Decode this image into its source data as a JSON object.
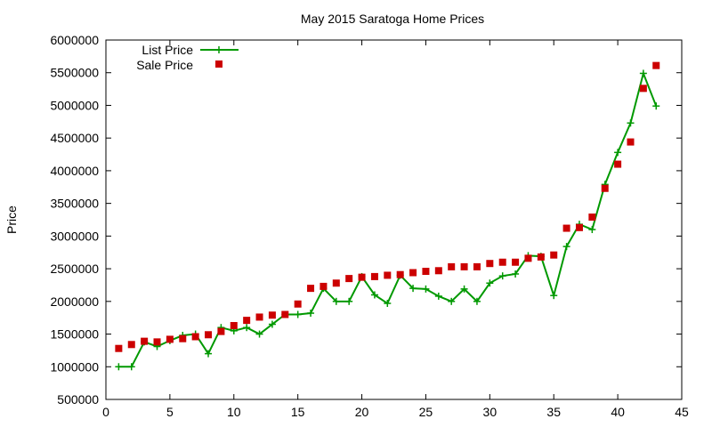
{
  "chart_data": {
    "type": "line",
    "title": "May 2015 Saratoga Home Prices",
    "xlabel": "",
    "ylabel": "Price",
    "xlim": [
      0,
      45
    ],
    "ylim": [
      500000,
      6000000
    ],
    "xticks": [
      0,
      5,
      10,
      15,
      20,
      25,
      30,
      35,
      40,
      45
    ],
    "yticks": [
      500000,
      1000000,
      1500000,
      2000000,
      2500000,
      3000000,
      3500000,
      4000000,
      4500000,
      5000000,
      5500000,
      6000000
    ],
    "grid": false,
    "legend_position": "top-left",
    "series": [
      {
        "name": "List Price",
        "style": "line-cross",
        "color": "#009900",
        "x": [
          1,
          2,
          3,
          4,
          5,
          6,
          7,
          8,
          9,
          10,
          11,
          12,
          13,
          14,
          15,
          16,
          17,
          18,
          19,
          20,
          21,
          22,
          23,
          24,
          25,
          26,
          27,
          28,
          29,
          30,
          31,
          32,
          33,
          34,
          35,
          36,
          37,
          38,
          39,
          40,
          41,
          42,
          43
        ],
        "y": [
          1000000,
          1000000,
          1380000,
          1310000,
          1400000,
          1480000,
          1500000,
          1200000,
          1600000,
          1550000,
          1600000,
          1500000,
          1650000,
          1800000,
          1800000,
          1820000,
          2200000,
          2000000,
          2000000,
          2380000,
          2100000,
          1970000,
          2400000,
          2200000,
          2190000,
          2080000,
          2000000,
          2190000,
          2000000,
          2280000,
          2390000,
          2420000,
          2700000,
          2690000,
          2090000,
          2840000,
          3180000,
          3100000,
          3790000,
          4280000,
          4730000,
          5490000,
          4990000
        ]
      },
      {
        "name": "Sale Price",
        "style": "square",
        "color": "#cc0000",
        "x": [
          1,
          2,
          3,
          4,
          5,
          6,
          7,
          8,
          9,
          10,
          11,
          12,
          13,
          14,
          15,
          16,
          17,
          18,
          19,
          20,
          21,
          22,
          23,
          24,
          25,
          26,
          27,
          28,
          29,
          30,
          31,
          32,
          33,
          34,
          35,
          36,
          37,
          38,
          39,
          40,
          41,
          42,
          43
        ],
        "y": [
          1280000,
          1340000,
          1390000,
          1380000,
          1420000,
          1430000,
          1460000,
          1490000,
          1540000,
          1630000,
          1710000,
          1760000,
          1790000,
          1800000,
          1960000,
          2200000,
          2230000,
          2280000,
          2350000,
          2370000,
          2380000,
          2400000,
          2410000,
          2440000,
          2460000,
          2470000,
          2530000,
          2530000,
          2530000,
          2580000,
          2600000,
          2600000,
          2660000,
          2680000,
          2710000,
          3120000,
          3130000,
          3290000,
          3730000,
          4100000,
          4440000,
          5260000,
          5610000
        ]
      }
    ]
  }
}
